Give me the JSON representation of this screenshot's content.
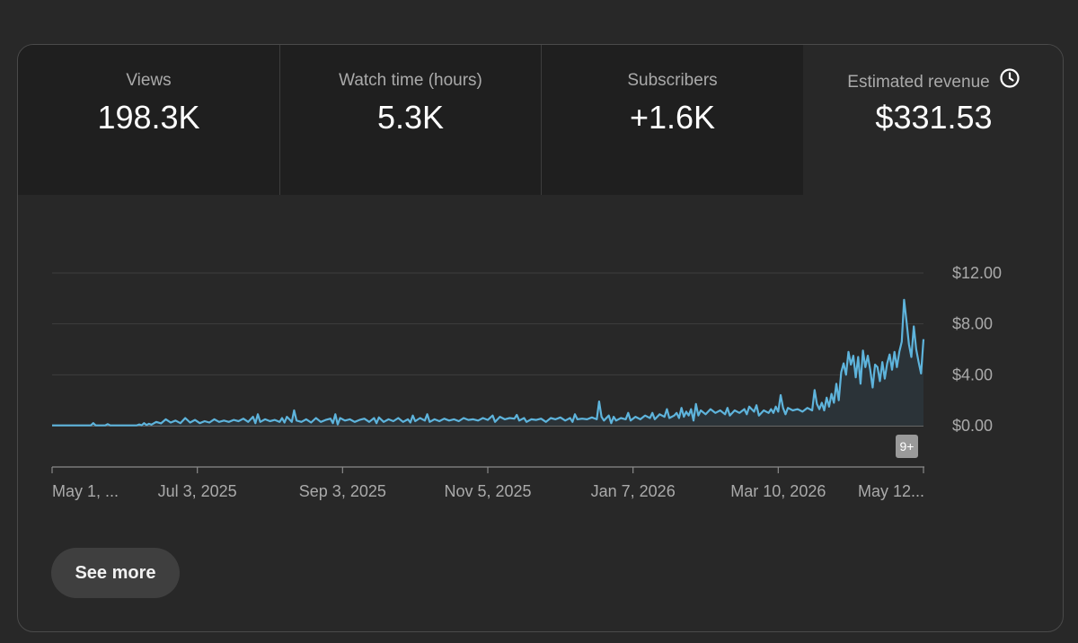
{
  "metrics": {
    "views": {
      "label": "Views",
      "value": "198.3K"
    },
    "watch_time": {
      "label": "Watch time (hours)",
      "value": "5.3K"
    },
    "subscribers": {
      "label": "Subscribers",
      "value": "+1.6K"
    },
    "revenue": {
      "label": "Estimated revenue",
      "value": "$331.53",
      "icon": "clock-icon"
    }
  },
  "badge": "9+",
  "see_more_label": "See more",
  "colors": {
    "line": "#5eb4dc",
    "area": "#2b3338",
    "grid": "#3e3e3e",
    "axis_text": "#aaaaaa"
  },
  "chart_data": {
    "type": "area",
    "x_ticks": [
      "May 1, ...",
      "Jul 3, 2025",
      "Sep 3, 2025",
      "Nov 5, 2025",
      "Jan 7, 2026",
      "Mar 10, 2026",
      "May 12..."
    ],
    "y_ticks": [
      "$12.00",
      "$8.00",
      "$4.00",
      "$0.00"
    ],
    "ylim": [
      0,
      12
    ],
    "series": [
      {
        "points": [
          [
            0,
            0.02
          ],
          [
            16,
            0.02
          ],
          [
            17,
            0.2
          ],
          [
            18,
            0.02
          ],
          [
            22,
            0.03
          ],
          [
            23,
            0.12
          ],
          [
            24,
            0.02
          ],
          [
            35,
            0.03
          ],
          [
            36,
            0.1
          ],
          [
            37,
            0.03
          ],
          [
            38,
            0.2
          ],
          [
            39,
            0.05
          ],
          [
            40,
            0.15
          ],
          [
            41,
            0.08
          ],
          [
            43,
            0.3
          ],
          [
            45,
            0.18
          ],
          [
            47,
            0.5
          ],
          [
            49,
            0.25
          ],
          [
            51,
            0.4
          ],
          [
            53,
            0.2
          ],
          [
            55,
            0.6
          ],
          [
            57,
            0.25
          ],
          [
            59,
            0.45
          ],
          [
            61,
            0.2
          ],
          [
            63,
            0.35
          ],
          [
            65,
            0.25
          ],
          [
            67,
            0.5
          ],
          [
            69,
            0.3
          ],
          [
            71,
            0.4
          ],
          [
            73,
            0.3
          ],
          [
            75,
            0.45
          ],
          [
            77,
            0.35
          ],
          [
            79,
            0.55
          ],
          [
            81,
            0.3
          ],
          [
            83,
            0.7
          ],
          [
            84,
            0.2
          ],
          [
            85,
            0.9
          ],
          [
            86,
            0.3
          ],
          [
            88,
            0.5
          ],
          [
            90,
            0.35
          ],
          [
            92,
            0.45
          ],
          [
            94,
            0.3
          ],
          [
            95,
            0.6
          ],
          [
            96,
            0.25
          ],
          [
            97,
            0.7
          ],
          [
            98,
            0.5
          ],
          [
            99,
            0.3
          ],
          [
            100,
            1.2
          ],
          [
            101,
            0.4
          ],
          [
            103,
            0.3
          ],
          [
            105,
            0.5
          ],
          [
            107,
            0.25
          ],
          [
            109,
            0.6
          ],
          [
            111,
            0.3
          ],
          [
            113,
            0.45
          ],
          [
            115,
            0.55
          ],
          [
            116,
            0.2
          ],
          [
            117,
            0.9
          ],
          [
            118,
            0.1
          ],
          [
            119,
            0.6
          ],
          [
            121,
            0.4
          ],
          [
            123,
            0.5
          ],
          [
            125,
            0.3
          ],
          [
            127,
            0.45
          ],
          [
            129,
            0.55
          ],
          [
            131,
            0.3
          ],
          [
            133,
            0.6
          ],
          [
            134,
            0.2
          ],
          [
            135,
            0.65
          ],
          [
            137,
            0.3
          ],
          [
            139,
            0.5
          ],
          [
            141,
            0.35
          ],
          [
            143,
            0.6
          ],
          [
            145,
            0.3
          ],
          [
            147,
            0.5
          ],
          [
            148,
            0.25
          ],
          [
            149,
            0.8
          ],
          [
            150,
            0.35
          ],
          [
            152,
            0.6
          ],
          [
            154,
            0.4
          ],
          [
            155,
            0.9
          ],
          [
            156,
            0.3
          ],
          [
            158,
            0.5
          ],
          [
            160,
            0.35
          ],
          [
            162,
            0.55
          ],
          [
            164,
            0.4
          ],
          [
            166,
            0.5
          ],
          [
            168,
            0.35
          ],
          [
            170,
            0.6
          ],
          [
            172,
            0.45
          ],
          [
            174,
            0.5
          ],
          [
            176,
            0.4
          ],
          [
            178,
            0.6
          ],
          [
            180,
            0.45
          ],
          [
            182,
            0.8
          ],
          [
            183,
            0.3
          ],
          [
            185,
            0.7
          ],
          [
            187,
            0.5
          ],
          [
            189,
            0.6
          ],
          [
            191,
            0.55
          ],
          [
            192,
            0.85
          ],
          [
            193,
            0.4
          ],
          [
            195,
            0.6
          ],
          [
            196,
            0.3
          ],
          [
            198,
            0.5
          ],
          [
            200,
            0.45
          ],
          [
            202,
            0.55
          ],
          [
            204,
            0.3
          ],
          [
            206,
            0.6
          ],
          [
            208,
            0.5
          ],
          [
            210,
            0.65
          ],
          [
            212,
            0.4
          ],
          [
            214,
            0.6
          ],
          [
            215,
            0.3
          ],
          [
            216,
            0.9
          ],
          [
            217,
            0.5
          ],
          [
            219,
            0.55
          ],
          [
            221,
            0.5
          ],
          [
            223,
            0.65
          ],
          [
            225,
            0.5
          ],
          [
            226,
            1.9
          ],
          [
            227,
            0.7
          ],
          [
            228,
            0.4
          ],
          [
            230,
            0.8
          ],
          [
            231,
            0.2
          ],
          [
            232,
            0.7
          ],
          [
            233,
            0.4
          ],
          [
            235,
            0.6
          ],
          [
            237,
            0.5
          ],
          [
            238,
            1.0
          ],
          [
            239,
            0.4
          ],
          [
            241,
            0.7
          ],
          [
            243,
            0.5
          ],
          [
            245,
            0.8
          ],
          [
            247,
            0.6
          ],
          [
            248,
            1.0
          ],
          [
            249,
            0.5
          ],
          [
            251,
            0.9
          ],
          [
            253,
            0.7
          ],
          [
            254,
            1.3
          ],
          [
            255,
            0.6
          ],
          [
            257,
            0.8
          ],
          [
            258,
            1.0
          ],
          [
            259,
            0.6
          ],
          [
            260,
            1.4
          ],
          [
            261,
            0.7
          ],
          [
            262,
            1.1
          ],
          [
            263,
            0.8
          ],
          [
            264,
            1.3
          ],
          [
            265,
            0.4
          ],
          [
            266,
            1.7
          ],
          [
            267,
            0.8
          ],
          [
            268,
            1.2
          ],
          [
            270,
            0.9
          ],
          [
            272,
            1.3
          ],
          [
            274,
            1.0
          ],
          [
            276,
            1.2
          ],
          [
            278,
            0.9
          ],
          [
            279,
            1.4
          ],
          [
            280,
            0.8
          ],
          [
            282,
            1.2
          ],
          [
            284,
            1.0
          ],
          [
            286,
            1.3
          ],
          [
            287,
            0.9
          ],
          [
            288,
            1.5
          ],
          [
            290,
            1.1
          ],
          [
            291,
            1.6
          ],
          [
            292,
            0.8
          ],
          [
            294,
            1.2
          ],
          [
            296,
            1.0
          ],
          [
            297,
            1.3
          ],
          [
            298,
            1.0
          ],
          [
            299,
            1.5
          ],
          [
            300,
            1.1
          ],
          [
            301,
            2.4
          ],
          [
            302,
            1.4
          ],
          [
            303,
            0.9
          ],
          [
            304,
            1.4
          ],
          [
            306,
            1.2
          ],
          [
            308,
            1.3
          ],
          [
            310,
            1.1
          ],
          [
            312,
            1.4
          ],
          [
            314,
            1.2
          ],
          [
            315,
            2.8
          ],
          [
            316,
            1.7
          ],
          [
            317,
            1.3
          ],
          [
            318,
            1.8
          ],
          [
            319,
            1.2
          ],
          [
            320,
            2.2
          ],
          [
            321,
            1.5
          ],
          [
            322,
            2.5
          ],
          [
            323,
            1.8
          ],
          [
            324,
            3.3
          ],
          [
            325,
            2.0
          ],
          [
            326,
            4.2
          ],
          [
            327,
            4.9
          ],
          [
            328,
            4.0
          ],
          [
            329,
            5.8
          ],
          [
            330,
            4.8
          ],
          [
            331,
            5.5
          ],
          [
            332,
            3.8
          ],
          [
            333,
            5.4
          ],
          [
            334,
            3.3
          ],
          [
            335,
            5.9
          ],
          [
            336,
            4.6
          ],
          [
            337,
            5.5
          ],
          [
            338,
            4.4
          ],
          [
            339,
            3.0
          ],
          [
            340,
            4.8
          ],
          [
            341,
            4.6
          ],
          [
            342,
            3.5
          ],
          [
            343,
            5.0
          ],
          [
            344,
            3.7
          ],
          [
            345,
            4.9
          ],
          [
            346,
            5.6
          ],
          [
            347,
            4.4
          ],
          [
            348,
            5.8
          ],
          [
            349,
            4.6
          ],
          [
            350,
            5.8
          ],
          [
            351,
            6.6
          ],
          [
            352,
            9.9
          ],
          [
            353,
            8.2
          ],
          [
            354,
            6.4
          ],
          [
            355,
            5.4
          ],
          [
            356,
            7.8
          ],
          [
            357,
            6.0
          ],
          [
            358,
            5.0
          ],
          [
            359,
            4.1
          ],
          [
            360,
            6.8
          ]
        ]
      }
    ]
  }
}
